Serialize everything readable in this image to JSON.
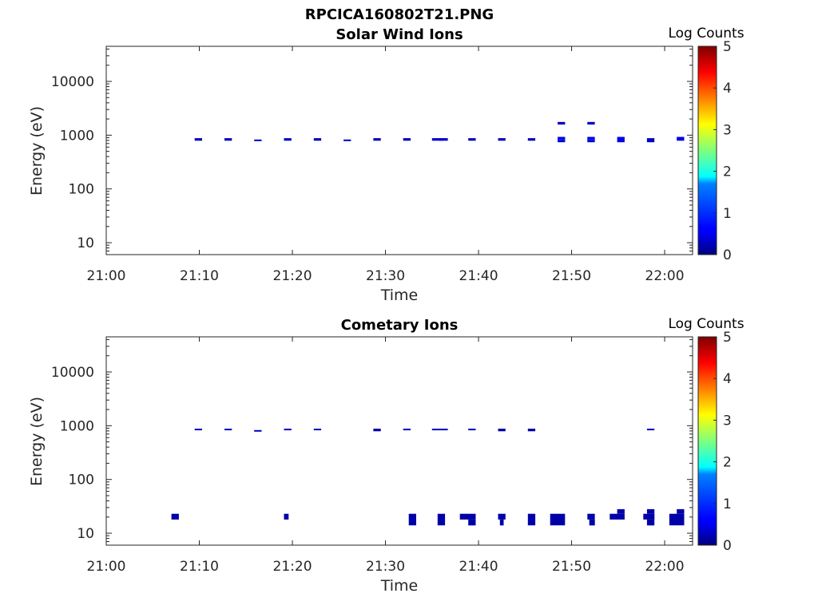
{
  "figure_title": "RPCICA160802T21.PNG",
  "colorbar": {
    "label": "Log Counts",
    "ticks": [
      "0",
      "1",
      "2",
      "3",
      "4",
      "5"
    ],
    "colormap": "jet"
  },
  "chart_data": [
    {
      "type": "heatmap",
      "title": "Solar Wind Ions",
      "xlabel": "Time",
      "ylabel": "Energy (eV)",
      "x_ticks": [
        "21:00",
        "21:10",
        "21:20",
        "21:30",
        "21:40",
        "21:50",
        "22:00"
      ],
      "y_ticks": [
        "10",
        "100",
        "1000",
        "10000"
      ],
      "y_scale": "log",
      "xlim": [
        "21:00",
        "22:03"
      ],
      "ylim": [
        6,
        45000
      ],
      "clim": [
        0,
        5
      ],
      "cells": [
        {
          "t0": "21:09.5",
          "t1": "21:10.3",
          "e0": 790,
          "e1": 880,
          "v": 0.3
        },
        {
          "t0": "21:12.7",
          "t1": "21:13.5",
          "e0": 790,
          "e1": 880,
          "v": 0.3
        },
        {
          "t0": "21:15.9",
          "t1": "21:16.7",
          "e0": 790,
          "e1": 830,
          "v": 0.3
        },
        {
          "t0": "21:19.1",
          "t1": "21:19.9",
          "e0": 790,
          "e1": 880,
          "v": 0.3
        },
        {
          "t0": "21:22.3",
          "t1": "21:23.1",
          "e0": 790,
          "e1": 880,
          "v": 0.3
        },
        {
          "t0": "21:25.5",
          "t1": "21:26.3",
          "e0": 790,
          "e1": 830,
          "v": 0.3
        },
        {
          "t0": "21:28.7",
          "t1": "21:29.5",
          "e0": 790,
          "e1": 880,
          "v": 0.3
        },
        {
          "t0": "21:31.9",
          "t1": "21:32.7",
          "e0": 790,
          "e1": 880,
          "v": 0.3
        },
        {
          "t0": "21:35.0",
          "t1": "21:36.7",
          "e0": 790,
          "e1": 880,
          "v": 0.3
        },
        {
          "t0": "21:35.8",
          "t1": "21:36.2",
          "e0": 790,
          "e1": 880,
          "v": 0.5
        },
        {
          "t0": "21:38.9",
          "t1": "21:39.7",
          "e0": 790,
          "e1": 880,
          "v": 0.3
        },
        {
          "t0": "21:42.1",
          "t1": "21:42.9",
          "e0": 790,
          "e1": 880,
          "v": 0.3
        },
        {
          "t0": "21:45.3",
          "t1": "21:46.1",
          "e0": 790,
          "e1": 880,
          "v": 0.3
        },
        {
          "t0": "21:48.5",
          "t1": "21:49.3",
          "e0": 740,
          "e1": 930,
          "v": 0.4
        },
        {
          "t0": "21:48.5",
          "t1": "21:49.3",
          "e0": 820,
          "e1": 860,
          "v": 0.8
        },
        {
          "t0": "21:48.5",
          "t1": "21:49.3",
          "e0": 1580,
          "e1": 1760,
          "v": 0.3
        },
        {
          "t0": "21:51.7",
          "t1": "21:52.5",
          "e0": 740,
          "e1": 930,
          "v": 0.4
        },
        {
          "t0": "21:51.7",
          "t1": "21:52.5",
          "e0": 820,
          "e1": 860,
          "v": 0.8
        },
        {
          "t0": "21:51.7",
          "t1": "21:52.5",
          "e0": 1580,
          "e1": 1760,
          "v": 0.3
        },
        {
          "t0": "21:54.9",
          "t1": "21:55.7",
          "e0": 740,
          "e1": 930,
          "v": 0.5
        },
        {
          "t0": "21:58.1",
          "t1": "21:58.9",
          "e0": 740,
          "e1": 880,
          "v": 0.3
        },
        {
          "t0": "22:01.3",
          "t1": "22:02.1",
          "e0": 790,
          "e1": 930,
          "v": 0.5
        }
      ]
    },
    {
      "type": "heatmap",
      "title": "Cometary Ions",
      "xlabel": "Time",
      "ylabel": "Energy (eV)",
      "x_ticks": [
        "21:00",
        "21:10",
        "21:20",
        "21:30",
        "21:40",
        "21:50",
        "22:00"
      ],
      "y_ticks": [
        "10",
        "100",
        "1000",
        "10000"
      ],
      "y_scale": "log",
      "xlim": [
        "21:00",
        "22:03"
      ],
      "ylim": [
        6,
        45000
      ],
      "clim": [
        0,
        5
      ],
      "cells": [
        {
          "t0": "21:09.5",
          "t1": "21:10.3",
          "e0": 840,
          "e1": 880,
          "v": 0.3
        },
        {
          "t0": "21:12.7",
          "t1": "21:13.5",
          "e0": 840,
          "e1": 880,
          "v": 0.3
        },
        {
          "t0": "21:15.9",
          "t1": "21:16.7",
          "e0": 790,
          "e1": 830,
          "v": 0.3
        },
        {
          "t0": "21:19.1",
          "t1": "21:19.9",
          "e0": 840,
          "e1": 880,
          "v": 0.3
        },
        {
          "t0": "21:22.3",
          "t1": "21:23.1",
          "e0": 840,
          "e1": 880,
          "v": 0.3
        },
        {
          "t0": "21:28.7",
          "t1": "21:29.5",
          "e0": 790,
          "e1": 880,
          "v": 0.2
        },
        {
          "t0": "21:31.9",
          "t1": "21:32.7",
          "e0": 840,
          "e1": 880,
          "v": 0.3
        },
        {
          "t0": "21:35.0",
          "t1": "21:36.7",
          "e0": 840,
          "e1": 880,
          "v": 0.3
        },
        {
          "t0": "21:38.9",
          "t1": "21:39.7",
          "e0": 840,
          "e1": 880,
          "v": 0.3
        },
        {
          "t0": "21:42.1",
          "t1": "21:42.9",
          "e0": 790,
          "e1": 880,
          "v": 0.2
        },
        {
          "t0": "21:45.3",
          "t1": "21:46.1",
          "e0": 790,
          "e1": 880,
          "v": 0.2
        },
        {
          "t0": "21:58.1",
          "t1": "21:58.9",
          "e0": 840,
          "e1": 880,
          "v": 0.3
        },
        {
          "t0": "21:07.0",
          "t1": "21:07.8",
          "e0": 18,
          "e1": 23,
          "v": 0.2
        },
        {
          "t0": "21:19.1",
          "t1": "21:19.6",
          "e0": 18,
          "e1": 23,
          "v": 0.2
        },
        {
          "t0": "21:32.5",
          "t1": "21:33.3",
          "e0": 14,
          "e1": 23,
          "v": 0.2
        },
        {
          "t0": "21:35.6",
          "t1": "21:36.4",
          "e0": 14,
          "e1": 23,
          "v": 0.2
        },
        {
          "t0": "21:38.0",
          "t1": "21:39.7",
          "e0": 18,
          "e1": 23,
          "v": 0.2
        },
        {
          "t0": "21:38.9",
          "t1": "21:39.7",
          "e0": 14,
          "e1": 18,
          "v": 0.2
        },
        {
          "t0": "21:42.1",
          "t1": "21:42.9",
          "e0": 18,
          "e1": 23,
          "v": 0.2
        },
        {
          "t0": "21:42.3",
          "t1": "21:42.7",
          "e0": 14,
          "e1": 18,
          "v": 0.2
        },
        {
          "t0": "21:45.3",
          "t1": "21:46.1",
          "e0": 14,
          "e1": 23,
          "v": 0.2
        },
        {
          "t0": "21:47.7",
          "t1": "21:49.3",
          "e0": 14,
          "e1": 23,
          "v": 0.2
        },
        {
          "t0": "21:51.7",
          "t1": "21:52.5",
          "e0": 18,
          "e1": 23,
          "v": 0.2
        },
        {
          "t0": "21:51.9",
          "t1": "21:52.5",
          "e0": 14,
          "e1": 18,
          "v": 0.2
        },
        {
          "t0": "21:54.1",
          "t1": "21:55.7",
          "e0": 18,
          "e1": 23,
          "v": 0.2
        },
        {
          "t0": "21:54.9",
          "t1": "21:55.7",
          "e0": 23,
          "e1": 28,
          "v": 0.2
        },
        {
          "t0": "21:57.7",
          "t1": "21:58.9",
          "e0": 18,
          "e1": 23,
          "v": 0.2
        },
        {
          "t0": "21:58.1",
          "t1": "21:58.9",
          "e0": 14,
          "e1": 18,
          "v": 0.2
        },
        {
          "t0": "21:58.1",
          "t1": "21:58.9",
          "e0": 23,
          "e1": 28,
          "v": 0.2
        },
        {
          "t0": "22:00.5",
          "t1": "22:02.1",
          "e0": 14,
          "e1": 23,
          "v": 0.2
        },
        {
          "t0": "22:01.3",
          "t1": "22:02.1",
          "e0": 23,
          "e1": 28,
          "v": 0.2
        }
      ]
    }
  ]
}
